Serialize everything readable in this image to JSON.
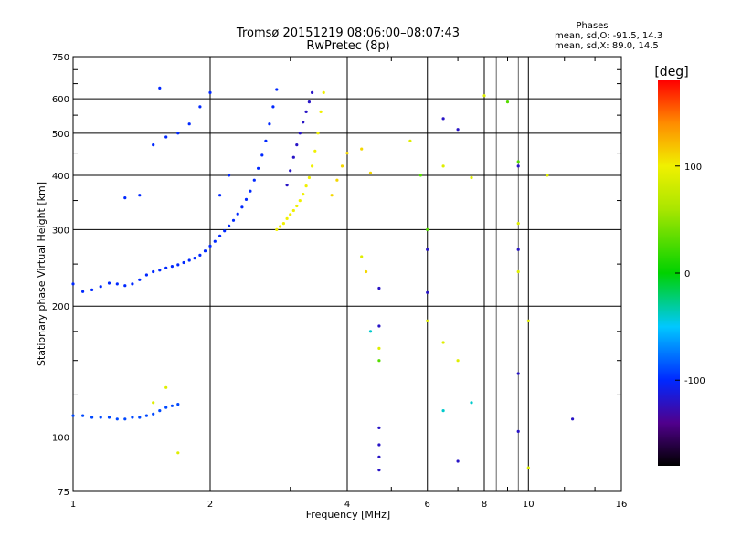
{
  "chart_data": {
    "type": "scatter",
    "title": "Tromsø 20151219 08:06:00–08:07:43",
    "subtitle": "RwPretec (8p)",
    "xlabel": "Frequency [MHz]",
    "ylabel": "Stationary phase Virtual Height [km]",
    "x_scale": "log2",
    "y_scale": "log",
    "xlim": [
      1,
      16
    ],
    "ylim": [
      75,
      750
    ],
    "x_ticks": [
      1,
      2,
      4,
      6,
      8,
      10,
      16
    ],
    "y_ticks": [
      75,
      100,
      200,
      300,
      400,
      500,
      600,
      750
    ],
    "grid": true,
    "phase_box": {
      "title": "Phases",
      "line1": "mean, sd,O: -91.5, 14.3",
      "line2": "mean, sd,X:  89.0, 14.5"
    },
    "colorbar": {
      "label": "[deg]",
      "range": [
        -180,
        180
      ],
      "ticks": [
        100,
        0,
        -100
      ]
    },
    "traces": [
      {
        "phase": -100,
        "points": [
          [
            1.0,
            225
          ],
          [
            1.05,
            216
          ],
          [
            1.1,
            218
          ],
          [
            1.15,
            222
          ],
          [
            1.2,
            226
          ],
          [
            1.25,
            225
          ],
          [
            1.3,
            223
          ],
          [
            1.35,
            225
          ],
          [
            1.4,
            230
          ],
          [
            1.45,
            236
          ],
          [
            1.5,
            240
          ],
          [
            1.55,
            242
          ],
          [
            1.6,
            245
          ],
          [
            1.65,
            247
          ],
          [
            1.7,
            249
          ],
          [
            1.75,
            252
          ],
          [
            1.8,
            255
          ],
          [
            1.85,
            258
          ],
          [
            1.9,
            262
          ],
          [
            1.95,
            268
          ],
          [
            2.0,
            275
          ],
          [
            2.05,
            282
          ],
          [
            2.1,
            290
          ],
          [
            2.15,
            298
          ],
          [
            2.2,
            306
          ],
          [
            2.25,
            315
          ],
          [
            2.3,
            326
          ],
          [
            2.35,
            338
          ],
          [
            2.4,
            352
          ],
          [
            2.45,
            368
          ],
          [
            2.5,
            390
          ],
          [
            2.55,
            415
          ],
          [
            2.6,
            445
          ],
          [
            2.65,
            480
          ],
          [
            2.7,
            525
          ],
          [
            2.75,
            575
          ],
          [
            2.8,
            630
          ]
        ]
      },
      {
        "phase": -90,
        "points": [
          [
            1.0,
            112
          ],
          [
            1.05,
            112
          ],
          [
            1.1,
            111
          ],
          [
            1.15,
            111
          ],
          [
            1.2,
            111
          ],
          [
            1.25,
            110
          ],
          [
            1.3,
            110
          ],
          [
            1.35,
            111
          ],
          [
            1.4,
            111
          ],
          [
            1.45,
            112
          ],
          [
            1.5,
            113
          ],
          [
            1.55,
            115
          ],
          [
            1.6,
            117
          ],
          [
            1.65,
            118
          ],
          [
            1.7,
            119
          ]
        ]
      },
      {
        "phase": 100,
        "points": [
          [
            2.8,
            300
          ],
          [
            2.85,
            305
          ],
          [
            2.9,
            310
          ],
          [
            2.95,
            318
          ],
          [
            3.0,
            325
          ],
          [
            3.05,
            332
          ],
          [
            3.1,
            340
          ],
          [
            3.15,
            350
          ],
          [
            3.2,
            362
          ],
          [
            3.25,
            378
          ],
          [
            3.3,
            395
          ],
          [
            3.35,
            420
          ],
          [
            3.4,
            455
          ],
          [
            3.45,
            500
          ],
          [
            3.5,
            560
          ],
          [
            3.55,
            620
          ]
        ]
      },
      {
        "phase": -120,
        "points": [
          [
            2.95,
            380
          ],
          [
            3.0,
            410
          ],
          [
            3.05,
            440
          ],
          [
            3.1,
            470
          ],
          [
            3.15,
            500
          ],
          [
            3.2,
            530
          ],
          [
            3.25,
            560
          ],
          [
            3.3,
            590
          ],
          [
            3.35,
            620
          ]
        ]
      },
      {
        "phase": -100,
        "points": [
          [
            1.3,
            355
          ],
          [
            1.4,
            360
          ],
          [
            1.5,
            470
          ],
          [
            1.6,
            490
          ],
          [
            1.7,
            500
          ],
          [
            1.8,
            525
          ],
          [
            1.9,
            575
          ],
          [
            2.0,
            620
          ],
          [
            2.1,
            360
          ],
          [
            2.2,
            400
          ],
          [
            1.55,
            635
          ]
        ]
      },
      {
        "phase": 110,
        "points": [
          [
            3.7,
            360
          ],
          [
            3.8,
            390
          ],
          [
            3.9,
            420
          ],
          [
            4.0,
            450
          ],
          [
            4.3,
            460
          ],
          [
            4.4,
            240
          ],
          [
            4.5,
            405
          ]
        ]
      },
      {
        "phase": -120,
        "points": [
          [
            4.7,
            220
          ],
          [
            4.7,
            180
          ],
          [
            4.7,
            105
          ],
          [
            4.7,
            96
          ],
          [
            4.7,
            90
          ],
          [
            4.7,
            84
          ],
          [
            6.0,
            270
          ],
          [
            6.0,
            215
          ],
          [
            6.5,
            540
          ],
          [
            7.0,
            510
          ],
          [
            7.0,
            88
          ],
          [
            9.5,
            420
          ],
          [
            9.5,
            270
          ],
          [
            9.5,
            140
          ],
          [
            9.5,
            103
          ],
          [
            12.5,
            110
          ]
        ]
      },
      {
        "phase": 90,
        "points": [
          [
            4.3,
            260
          ],
          [
            4.7,
            160
          ],
          [
            5.5,
            480
          ],
          [
            6.0,
            185
          ],
          [
            6.5,
            165
          ],
          [
            6.5,
            420
          ],
          [
            7.0,
            150
          ],
          [
            7.5,
            395
          ],
          [
            8.0,
            610
          ],
          [
            9.5,
            310
          ],
          [
            9.5,
            240
          ],
          [
            10.0,
            185
          ],
          [
            10.0,
            85
          ],
          [
            11.0,
            400
          ],
          [
            1.7,
            92
          ],
          [
            1.6,
            130
          ],
          [
            1.5,
            120
          ]
        ]
      },
      {
        "phase": 30,
        "points": [
          [
            4.7,
            150
          ],
          [
            5.8,
            400
          ],
          [
            6.0,
            300
          ],
          [
            9.0,
            590
          ],
          [
            9.5,
            430
          ]
        ]
      },
      {
        "phase": -40,
        "points": [
          [
            7.5,
            120
          ],
          [
            6.5,
            115
          ],
          [
            4.5,
            175
          ]
        ]
      }
    ]
  }
}
